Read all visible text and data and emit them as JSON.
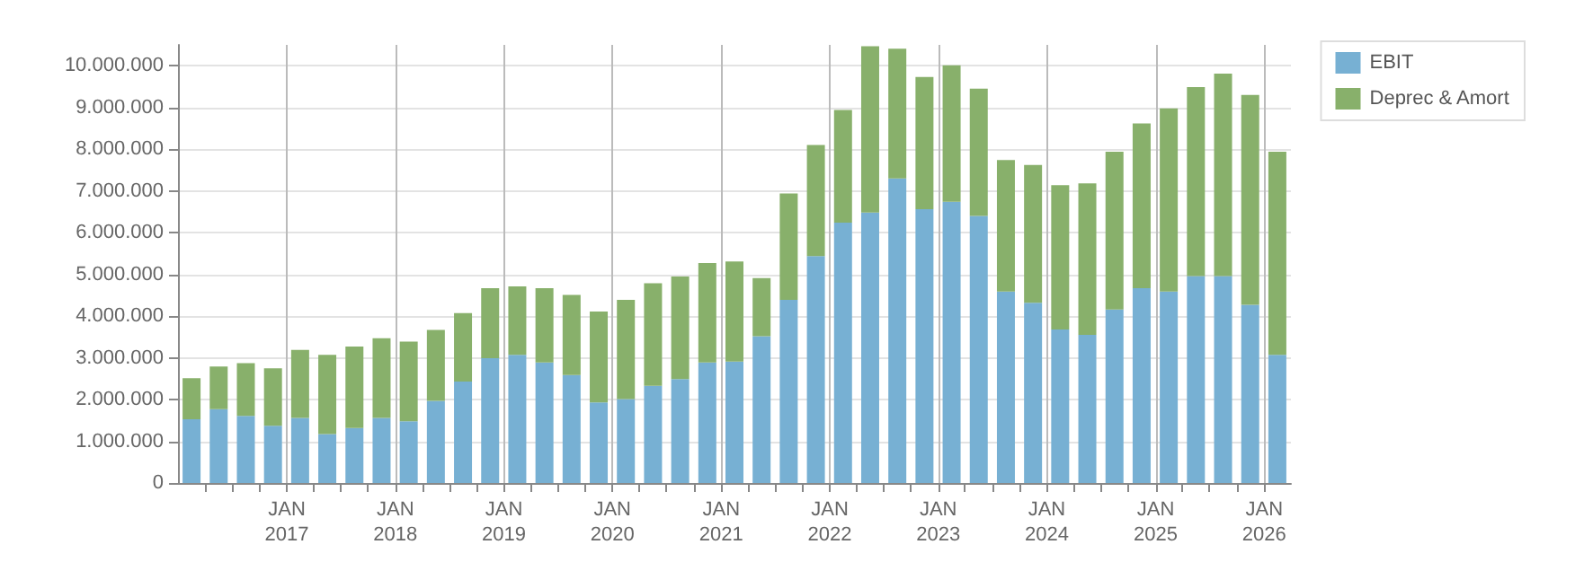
{
  "chart_data": {
    "type": "bar",
    "stacked": true,
    "x": [
      "2016-02-15",
      "2016-05-15",
      "2016-08-15",
      "2016-11-15",
      "2017-02-15",
      "2017-05-15",
      "2017-08-15",
      "2017-11-15",
      "2018-02-15",
      "2018-05-15",
      "2018-08-15",
      "2018-11-15",
      "2019-02-15",
      "2019-05-15",
      "2019-08-15",
      "2019-11-15",
      "2020-02-15",
      "2020-05-15",
      "2020-08-15",
      "2020-11-15",
      "2021-02-15",
      "2021-05-15",
      "2021-08-15",
      "2021-11-15",
      "2022-02-15",
      "2022-05-15",
      "2022-08-15",
      "2022-11-15",
      "2023-02-15",
      "2023-05-15",
      "2023-08-15",
      "2023-11-15",
      "2024-02-15",
      "2024-05-15",
      "2024-08-15",
      "2024-11-15",
      "2025-02-15",
      "2025-05-15",
      "2025-08-15",
      "2025-11-15",
      "2026-02-15"
    ],
    "series": [
      {
        "name": "EBIT",
        "color": "#77b0d3",
        "values": [
          1530000,
          1770000,
          1610000,
          1370000,
          1560000,
          1170000,
          1320000,
          1560000,
          1480000,
          1970000,
          2430000,
          2990000,
          3070000,
          2890000,
          2590000,
          1930000,
          2010000,
          2330000,
          2490000,
          2890000,
          2910000,
          3520000,
          4390000,
          5440000,
          6240000,
          6480000,
          7300000,
          6560000,
          6740000,
          6400000,
          4590000,
          4320000,
          3680000,
          3550000,
          4160000,
          4670000,
          4590000,
          4960000,
          4960000,
          4270000,
          3070000
        ]
      },
      {
        "name": "Deprec & Amort",
        "color": "#88b06b",
        "values": [
          980000,
          1020000,
          1260000,
          1380000,
          1630000,
          1900000,
          1950000,
          1910000,
          1910000,
          1700000,
          1640000,
          1680000,
          1640000,
          1780000,
          1920000,
          2180000,
          2380000,
          2460000,
          2460000,
          2380000,
          2400000,
          1390000,
          2550000,
          2660000,
          2700000,
          3990000,
          3110000,
          3170000,
          3270000,
          3050000,
          3150000,
          3300000,
          3460000,
          3630000,
          3780000,
          3950000,
          4390000,
          4530000,
          4850000,
          5030000,
          4870000
        ]
      }
    ],
    "xlim": [
      "2016-01-01",
      "2026-04-01"
    ],
    "xticks": [
      {
        "value": "2016-04-01",
        "label": null
      },
      {
        "value": "2016-07-01",
        "label": null
      },
      {
        "value": "2016-10-01",
        "label": null
      },
      {
        "value": "2017-01-01",
        "label": "JAN\n2017"
      },
      {
        "value": "2017-04-01",
        "label": null
      },
      {
        "value": "2017-07-01",
        "label": null
      },
      {
        "value": "2017-10-01",
        "label": null
      },
      {
        "value": "2018-01-01",
        "label": "JAN\n2018"
      },
      {
        "value": "2018-04-01",
        "label": null
      },
      {
        "value": "2018-07-01",
        "label": null
      },
      {
        "value": "2018-10-01",
        "label": null
      },
      {
        "value": "2019-01-01",
        "label": "JAN\n2019"
      },
      {
        "value": "2019-04-01",
        "label": null
      },
      {
        "value": "2019-07-01",
        "label": null
      },
      {
        "value": "2019-10-01",
        "label": null
      },
      {
        "value": "2020-01-01",
        "label": "JAN\n2020"
      },
      {
        "value": "2020-04-01",
        "label": null
      },
      {
        "value": "2020-07-01",
        "label": null
      },
      {
        "value": "2020-10-01",
        "label": null
      },
      {
        "value": "2021-01-01",
        "label": "JAN\n2021"
      },
      {
        "value": "2021-04-01",
        "label": null
      },
      {
        "value": "2021-07-01",
        "label": null
      },
      {
        "value": "2021-10-01",
        "label": null
      },
      {
        "value": "2022-01-01",
        "label": "JAN\n2022"
      },
      {
        "value": "2022-04-01",
        "label": null
      },
      {
        "value": "2022-07-01",
        "label": null
      },
      {
        "value": "2022-10-01",
        "label": null
      },
      {
        "value": "2023-01-01",
        "label": "JAN\n2023"
      },
      {
        "value": "2023-04-01",
        "label": null
      },
      {
        "value": "2023-07-01",
        "label": null
      },
      {
        "value": "2023-10-01",
        "label": null
      },
      {
        "value": "2024-01-01",
        "label": "JAN\n2024"
      },
      {
        "value": "2024-04-01",
        "label": null
      },
      {
        "value": "2024-07-01",
        "label": null
      },
      {
        "value": "2024-10-01",
        "label": null
      },
      {
        "value": "2025-01-01",
        "label": "JAN\n2025"
      },
      {
        "value": "2025-04-01",
        "label": null
      },
      {
        "value": "2025-07-01",
        "label": null
      },
      {
        "value": "2025-10-01",
        "label": null
      },
      {
        "value": "2026-01-01",
        "label": "JAN\n2026"
      }
    ],
    "ylim": [
      0,
      10500000
    ],
    "yticks": [
      {
        "value": 0,
        "label": "0"
      },
      {
        "value": 1000000,
        "label": "1.000.000"
      },
      {
        "value": 2000000,
        "label": "2.000.000"
      },
      {
        "value": 3000000,
        "label": "3.000.000"
      },
      {
        "value": 4000000,
        "label": "4.000.000"
      },
      {
        "value": 5000000,
        "label": "5.000.000"
      },
      {
        "value": 6000000,
        "label": "6.000.000"
      },
      {
        "value": 7000000,
        "label": "7.000.000"
      },
      {
        "value": 8000000,
        "label": "8.000.000"
      },
      {
        "value": 9000000,
        "label": "9.000.000"
      },
      {
        "value": 10000000,
        "label": "10.000.000"
      }
    ],
    "grid": true,
    "legend": "top right"
  }
}
